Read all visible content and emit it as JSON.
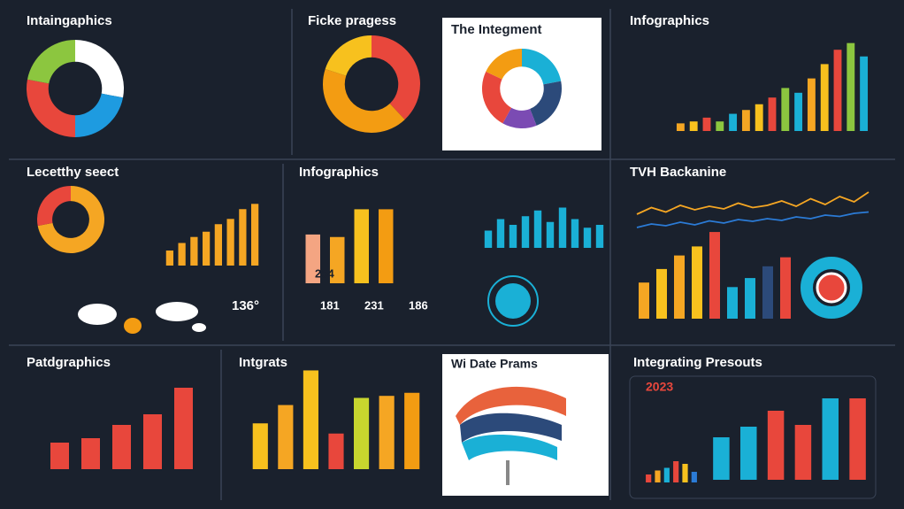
{
  "chart_data": [
    {
      "type": "pie",
      "title": "Intaingaphics",
      "values": [
        28,
        22,
        28,
        22
      ],
      "colors": [
        "#ffffff",
        "#1e9be0",
        "#e8473c",
        "#8cc63f"
      ]
    },
    {
      "type": "pie",
      "title": "Ficke pragess",
      "values": [
        38,
        42,
        20
      ],
      "colors": [
        "#e8473c",
        "#f39c12",
        "#f7c11e"
      ]
    },
    {
      "type": "pie",
      "title": "The Integment",
      "values": [
        22,
        22,
        14,
        24,
        18
      ],
      "colors": [
        "#1ab0d6",
        "#2c4a7a",
        "#7b4bb3",
        "#e8473c",
        "#f39c12"
      ]
    },
    {
      "type": "bar",
      "title": "Infographics",
      "values": [
        8,
        10,
        14,
        10,
        18,
        22,
        28,
        35,
        45,
        40,
        55,
        70,
        85,
        92,
        78
      ],
      "colors": [
        "#f5a623",
        "#f7c11e",
        "#e8473c",
        "#8cc63f",
        "#1ab0d6"
      ],
      "ylim": [
        0,
        100
      ]
    },
    {
      "type": "pie",
      "title": "Lecetthy seect",
      "values": [
        72,
        28
      ],
      "colors": [
        "#f5a623",
        "#e8473c"
      ]
    },
    {
      "type": "bar",
      "values": [
        20,
        30,
        38,
        45,
        55,
        62,
        75,
        82
      ],
      "colors": [
        "#f5a623"
      ],
      "ylim": [
        0,
        100
      ]
    },
    {
      "type": "bar",
      "title": "Infographics",
      "values": [
        58,
        55,
        88,
        88
      ],
      "colors": [
        "#f4a582",
        "#f5a623",
        "#f7c11e",
        "#f39c12"
      ],
      "ylim": [
        0,
        100
      ]
    },
    {
      "type": "bar",
      "values": [
        30,
        50,
        40,
        55,
        65,
        45,
        70,
        50,
        35,
        40
      ],
      "colors": [
        "#1ab0d6"
      ],
      "ylim": [
        0,
        100
      ]
    },
    {
      "type": "line",
      "title": "TVH Backanine",
      "series": [
        {
          "color": "#f5a623",
          "values": [
            40,
            55,
            45,
            60,
            50,
            58,
            52,
            65,
            55,
            60,
            70,
            58,
            75,
            62,
            80,
            68,
            90
          ]
        },
        {
          "color": "#2b7bd6",
          "values": [
            10,
            18,
            14,
            22,
            16,
            25,
            20,
            28,
            24,
            30,
            26,
            34,
            30,
            38,
            35,
            42,
            45
          ]
        }
      ],
      "ylim": [
        0,
        100
      ]
    },
    {
      "type": "bar",
      "values": [
        40,
        55,
        70,
        80,
        96,
        35,
        45,
        58,
        68
      ],
      "colors": [
        "#f5a623",
        "#f7c11e",
        "#f5a623",
        "#f7c11e",
        "#e8473c",
        "#1ab0d6",
        "#1ab0d6",
        "#2c4a7a",
        "#e8473c"
      ],
      "ylim": [
        0,
        100
      ]
    },
    {
      "type": "bar",
      "title": "Patdgraphics",
      "values": [
        30,
        35,
        50,
        62,
        92
      ],
      "colors": [
        "#e8473c"
      ],
      "ylim": [
        0,
        100
      ]
    },
    {
      "type": "bar",
      "title": "Intgrats",
      "values": [
        45,
        63,
        97,
        35,
        70,
        72,
        75
      ],
      "colors": [
        "#f7c11e",
        "#f5a623",
        "#f7c11e",
        "#e8473c",
        "#c8d62e",
        "#f5a623",
        "#f39c12"
      ],
      "ylim": [
        0,
        100
      ]
    },
    {
      "type": "bar",
      "title": "Integrating Presouts",
      "values": [
        48,
        60,
        78,
        62,
        92,
        92
      ],
      "colors": [
        "#1ab0d6",
        "#1ab0d6",
        "#e8473c",
        "#e8473c",
        "#1ab0d6",
        "#e8473c"
      ],
      "ylim": [
        0,
        100
      ]
    },
    {
      "type": "bar",
      "values": [
        30,
        45,
        55,
        80,
        70,
        40
      ],
      "colors": [
        "#e8473c",
        "#f5a623",
        "#1ab0d6",
        "#e8473c",
        "#f7c11e",
        "#2b7bd6"
      ],
      "ylim": [
        0,
        100
      ]
    }
  ],
  "annotations": [
    "254",
    "181",
    "231",
    "186",
    "136°",
    "2023",
    "Wi Date Prams"
  ]
}
